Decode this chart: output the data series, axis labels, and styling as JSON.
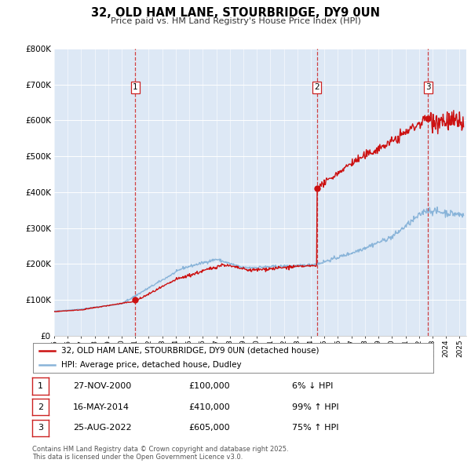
{
  "title": "32, OLD HAM LANE, STOURBRIDGE, DY9 0UN",
  "subtitle": "Price paid vs. HM Land Registry's House Price Index (HPI)",
  "background_color": "#ffffff",
  "plot_bg_color": "#dde8f5",
  "grid_color": "#ffffff",
  "hpi_line_color": "#89b4d9",
  "price_line_color": "#cc1111",
  "vline_color": "#cc2222",
  "ylim": [
    0,
    800000
  ],
  "legend_label_red": "32, OLD HAM LANE, STOURBRIDGE, DY9 0UN (detached house)",
  "legend_label_blue": "HPI: Average price, detached house, Dudley",
  "sales": [
    {
      "num": 1,
      "date_x": 2001.0,
      "price": 100000
    },
    {
      "num": 2,
      "date_x": 2014.45,
      "price": 410000
    },
    {
      "num": 3,
      "date_x": 2022.67,
      "price": 605000
    }
  ],
  "table_rows": [
    {
      "num": 1,
      "date": "27-NOV-2000",
      "price": "£100,000",
      "pct": "6% ↓ HPI"
    },
    {
      "num": 2,
      "date": "16-MAY-2014",
      "price": "£410,000",
      "pct": "99% ↑ HPI"
    },
    {
      "num": 3,
      "date": "25-AUG-2022",
      "price": "£605,000",
      "pct": "75% ↑ HPI"
    }
  ],
  "footer": "Contains HM Land Registry data © Crown copyright and database right 2025.\nThis data is licensed under the Open Government Licence v3.0.",
  "xmin": 1995,
  "xmax": 2025.5
}
